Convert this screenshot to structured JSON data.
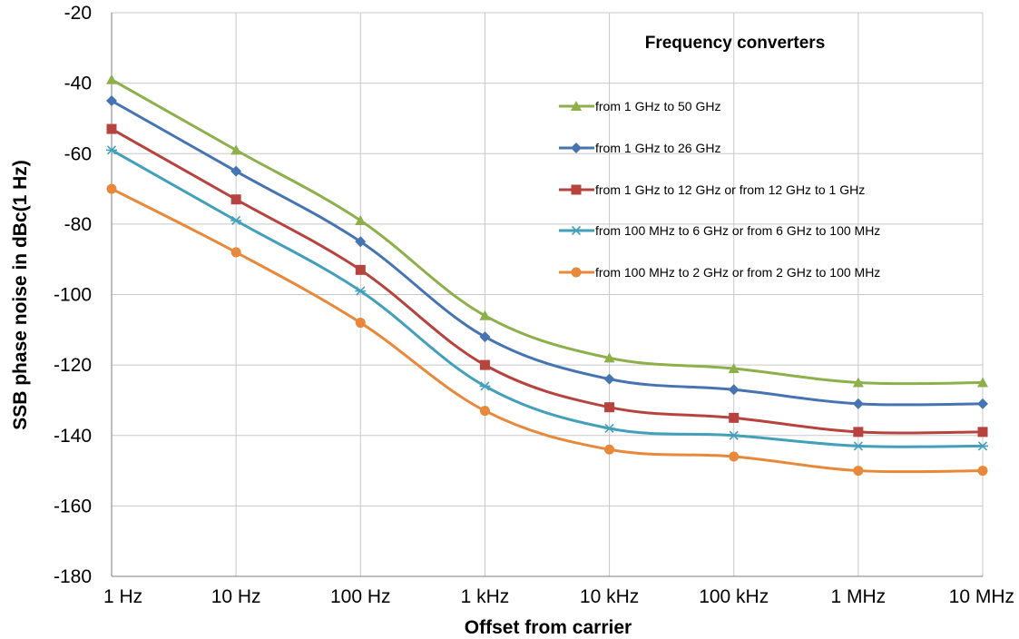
{
  "chart_data": {
    "type": "line",
    "title": "",
    "xlabel": "Offset from carrier",
    "ylabel": "SSB phase noise in dBc(1 Hz)",
    "x_scale": "log",
    "categories": [
      "1 Hz",
      "10 Hz",
      "100 Hz",
      "1 kHz",
      "10 kHz",
      "100 kHz",
      "1 MHz",
      "10 MHz"
    ],
    "ylim": [
      -180,
      -20
    ],
    "yticks": [
      -20,
      -40,
      -60,
      -80,
      -100,
      -120,
      -140,
      -160,
      -180
    ],
    "grid": true,
    "legend_title": "Frequency converters",
    "legend_position": "top-right",
    "series": [
      {
        "name": "from 1 GHz to 50 GHz",
        "color": "#8DB04B",
        "marker": "triangle",
        "values": [
          -39,
          -59,
          -79,
          -106,
          -118,
          -121,
          -125,
          -125
        ]
      },
      {
        "name": "from 1 GHz to 26 GHz",
        "color": "#4674B2",
        "marker": "diamond",
        "values": [
          -45,
          -65,
          -85,
          -112,
          -124,
          -127,
          -131,
          -131
        ]
      },
      {
        "name": "from 1 GHz to 12 GHz or from 12 GHz to 1 GHz",
        "color": "#B7433F",
        "marker": "square",
        "values": [
          -53,
          -73,
          -93,
          -120,
          -132,
          -135,
          -139,
          -139
        ]
      },
      {
        "name": "from 100 MHz to 6 GHz or from 6 GHz to 100 MHz",
        "color": "#43A0BA",
        "marker": "star",
        "values": [
          -59,
          -79,
          -99,
          -126,
          -138,
          -140,
          -143,
          -143
        ]
      },
      {
        "name": "from 100 MHz to 2 GHz or from 2 GHz to 100 MHz",
        "color": "#E8883A",
        "marker": "circle",
        "values": [
          -70,
          -88,
          -108,
          -133,
          -144,
          -146,
          -150,
          -150
        ]
      }
    ]
  }
}
